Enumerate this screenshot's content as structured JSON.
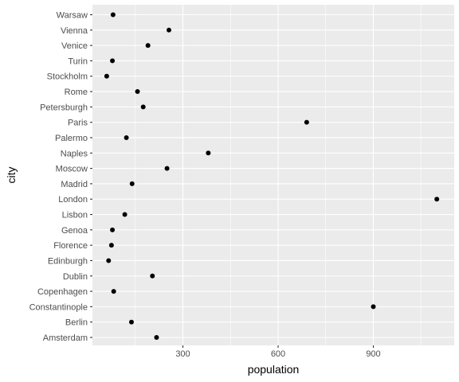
{
  "chart_data": {
    "type": "scatter",
    "title": "",
    "xlabel": "population",
    "ylabel": "city",
    "xlim": [
      0,
      1130
    ],
    "x_ticks": [
      300,
      600,
      900
    ],
    "x_tick_labels": [
      "300",
      "600",
      "900"
    ],
    "grid": true,
    "categories": [
      "Amsterdam",
      "Berlin",
      "Constantinople",
      "Copenhagen",
      "Dublin",
      "Edinburgh",
      "Florence",
      "Genoa",
      "Lisbon",
      "London",
      "Madrid",
      "Moscow",
      "Naples",
      "Palermo",
      "Paris",
      "Petersburgh",
      "Rome",
      "Stockholm",
      "Turin",
      "Venice",
      "Vienna",
      "Warsaw"
    ],
    "values": [
      217,
      138,
      900,
      82,
      204,
      66,
      75,
      78,
      117,
      1100,
      140,
      250,
      380,
      122,
      690,
      175,
      157,
      60,
      78,
      190,
      256,
      80
    ],
    "colors": {
      "panel": "#ebebeb",
      "grid_major": "#ffffff",
      "point": "#000000"
    }
  }
}
